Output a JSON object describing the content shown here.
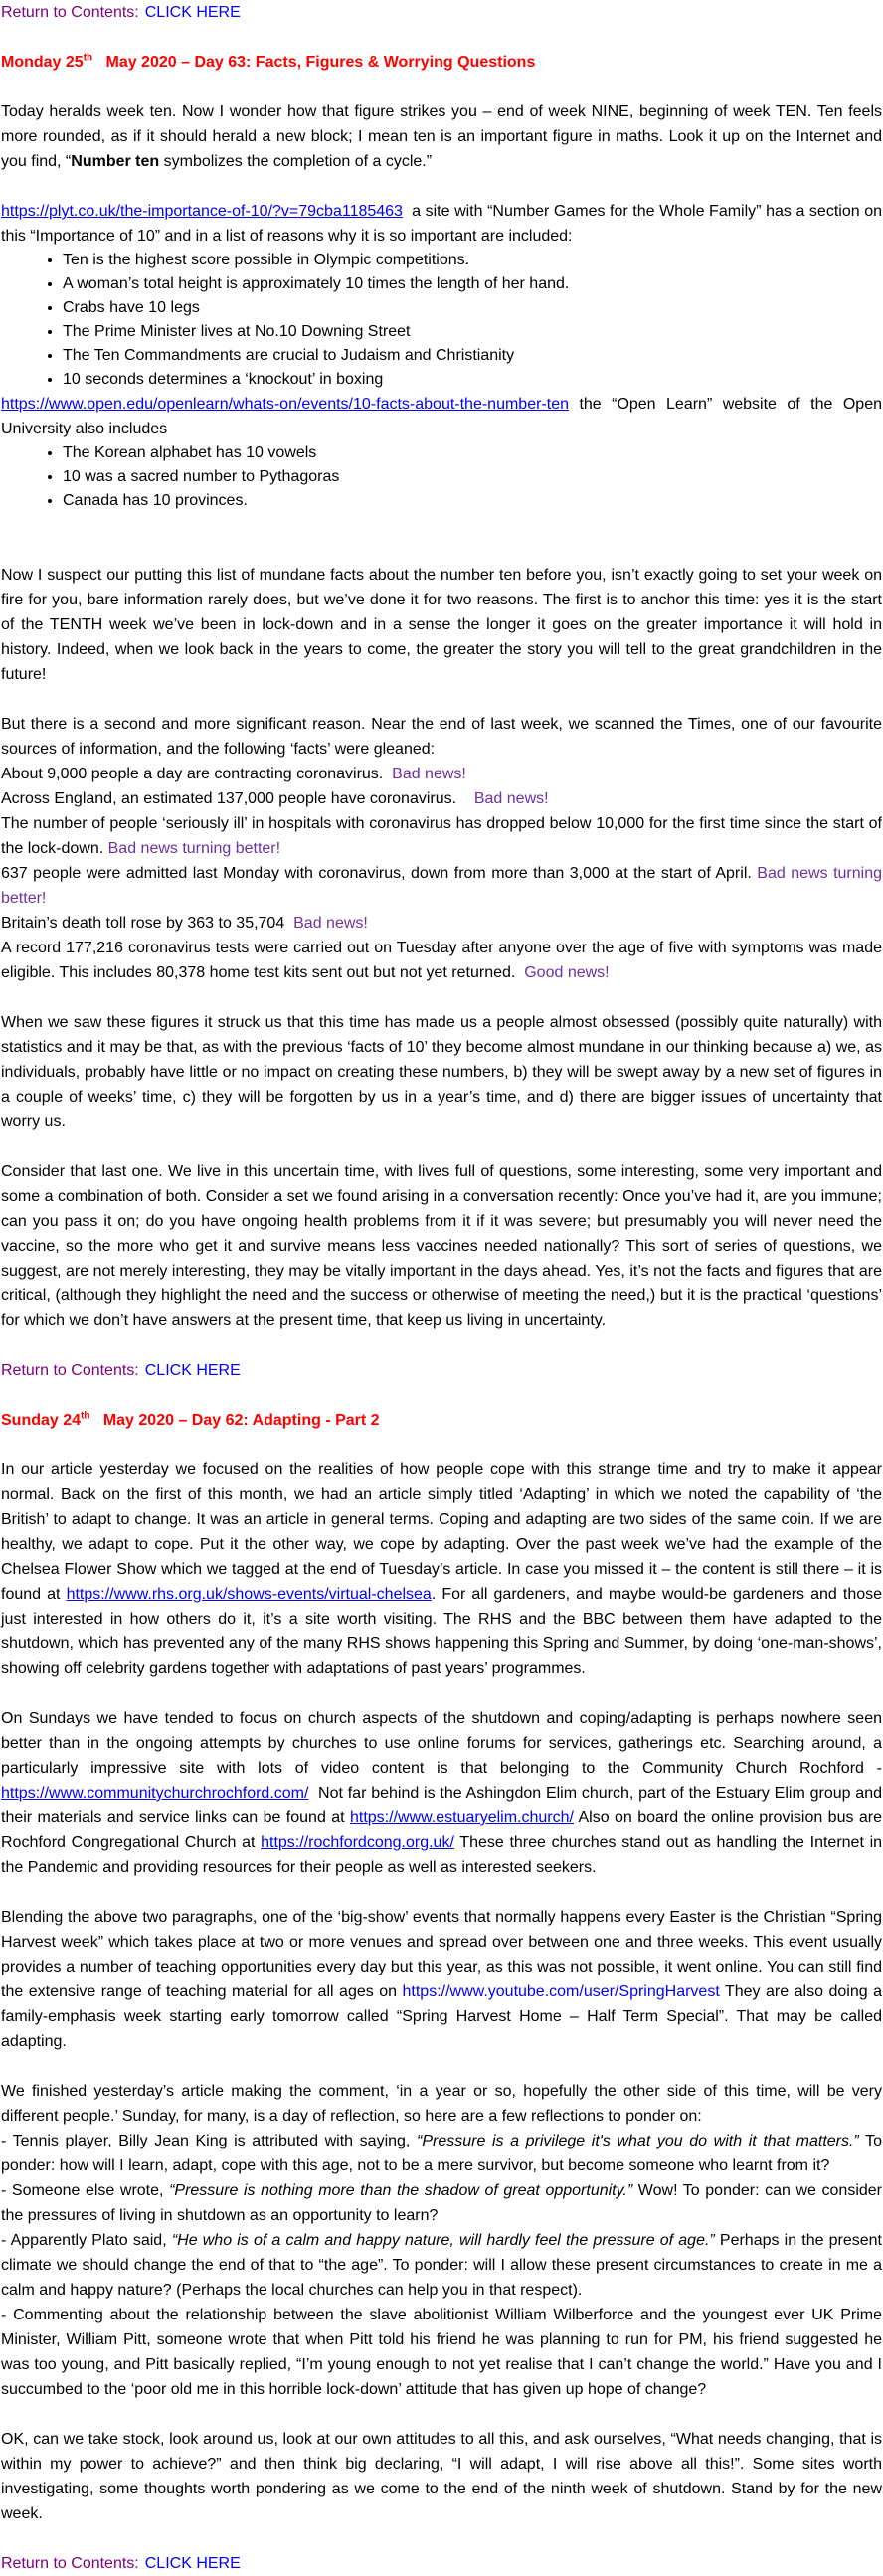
{
  "blocks": [
    [
      "Return to Contents:",
      "CLICK HERE"
    ],
    [
      "Monday 25",
      "th",
      "May 2020 – Day 63: Facts, Figures & Worrying Questions"
    ],
    [
      "Today heralds week ten. Now I wonder how that figure strikes you – end of week NINE, beginning of week TEN. Ten feels more rounded, as if it should herald a new block; I mean ten is an important figure in maths. Look it up on the Internet and you find, “",
      "Number ten",
      "symbolizes the completion of a cycle.”"
    ],
    [
      "https://plyt.co.uk/the-importance-of-10/?v=79cba1185463",
      "a site with “Number Games for the Whole Family” has a section on this “Importance of 10” and in a list of reasons why it is so important are included:"
    ],
    [
      "Ten is the highest score possible in Olympic competitions.",
      "A woman’s total height is approximately 10 times the length of her hand.",
      "Crabs have 10 legs",
      "The Prime Minister lives at No.10 Downing Street",
      "The Ten Commandments are crucial to Judaism and Christianity",
      "10 seconds determines a ‘knockout’ in boxing"
    ],
    [
      "https://www.open.edu/openlearn/whats-on/events/10-facts-about-the-number-ten",
      "the “Open Learn” website of the Open University also includes"
    ],
    [
      "The Korean alphabet has 10 vowels",
      "10 was a sacred number to Pythagoras",
      "Canada has 10 provinces."
    ],
    [
      "Now I suspect our putting this list of mundane facts about the number ten before you, isn’t exactly going to set your week on fire for you, bare information rarely does, but we’ve done it for two reasons. The first is to anchor this time: yes it is the start of the TENTH week we’ve been in lock-down and in a sense the longer it goes on the greater importance it will hold in history. Indeed, when we look back in the years to come, the greater the story you will tell to the great grandchildren in the future!"
    ],
    [
      "But there is a second and more significant reason. Near the end of last week, we scanned the Times, one of our favourite sources of information, and the following ‘facts’ were gleaned:"
    ],
    [
      "",
      "About 9,000 people a day are contracting coronavirus.",
      "Bad news!"
    ],
    [
      "",
      "Across England, an estimated 137,000 people have coronavirus.",
      "Bad news!"
    ],
    [
      "",
      "The number of people ‘seriously ill’ in hospitals with coronavirus has dropped below 10,000 for the first time since the start of the lock-down.",
      "Bad news turning better!"
    ],
    [
      "",
      "637 people were admitted last Monday with coronavirus, down from more than 3,000 at the start of April.",
      "Bad news turning better!"
    ],
    [
      "",
      "Britain’s death toll rose by 363 to 35,704",
      "Bad news!"
    ],
    [
      "",
      "A record 177,216 coronavirus tests were carried out on Tuesday after anyone over the age of five with symptoms was made eligible. This includes 80,378 home test kits sent out but not yet returned.",
      "Good news!"
    ],
    [
      "When we saw these figures it struck us that this time has made us a people almost obsessed (possibly quite naturally) with statistics and it may be that, as with the previous ‘facts of 10’ they become almost mundane in our thinking because a) we, as individuals, probably have little or no impact on creating these numbers, b) they will be swept away by a new set of figures in a couple of weeks’ time, c) they will be forgotten by us in a year’s time, and d) there are bigger issues of uncertainty that worry us."
    ],
    [
      "Consider that last one. We live in this uncertain time, with lives full of questions, some interesting, some very important and some a combination of both. Consider a set we found arising in a conversation recently: Once you’ve had it, are you immune; can you pass it on; do you have ongoing health problems from it if it was severe; but presumably you will never need the vaccine, so the more who get it and survive means less vaccines needed nationally? This sort of series of questions, we suggest, are not merely interesting, they may be vitally important in the days ahead. Yes, it’s not the facts and figures that are critical, (although they highlight the need and the success or otherwise of meeting the need,) but it is the practical ‘questions’ for which we don’t have answers at the present time, that keep us living in uncertainty."
    ],
    [
      "Return to Contents:",
      "CLICK HERE"
    ],
    [
      "Sunday 24",
      "th",
      "May 2020 – Day 62: Adapting - Part 2"
    ],
    [
      "In our article yesterday we focused on the realities of how people cope with this strange time and try to make it appear normal. Back on the first of this month, we had an article simply titled ‘Adapting’ in which we noted the capability of ‘the British’ to adapt to change. It was an article in general terms. Coping and adapting are two sides of the same coin. If we are healthy, we adapt to cope. Put it the other way, we cope by adapting. Over the past week we’ve had the example of the Chelsea Flower Show which we tagged at the end of Tuesday’s article. In case you missed it – the content is still there – it is found at",
      "https://www.rhs.org.uk/shows-events/virtual-chelsea",
      ". For all gardeners, and maybe would-be gardeners and those just interested in how others do it, it’s a site worth visiting. The RHS and the BBC between them have adapted to the shutdown, which has prevented any of the many RHS shows happening this Spring and Summer, by doing ‘one-man-shows’, showing off celebrity gardens together with adaptations of past years’ programmes."
    ],
    [
      "On Sundays we have tended to focus on church aspects of the shutdown and coping/adapting is perhaps nowhere seen better than in the ongoing attempts by churches to use online forums for services, gatherings etc. Searching around, a particularly impressive site with lots of video content is that belonging to the Community Church Rochford -",
      "https://www.communitychurchrochford.com/",
      "Not far behind is the Ashingdon Elim church, part of the Estuary Elim group and their materials and service links can be found at",
      "https://www.estuaryelim.church/",
      "Also on board the online provision bus are Rochford Congregational Church at",
      "https://rochfordcong.org.uk/",
      "These three churches stand out as handling the Internet in the Pandemic and providing resources for their people as well as interested seekers."
    ],
    [
      "Blending the above two paragraphs, one of the ‘big-show’ events that normally happens every Easter is the Christian “Spring Harvest week” which takes place at two or more venues and spread over between one and three weeks. This event usually provides a number of teaching opportunities every day but this year, as this was not possible, it went online. You can still find the extensive range of teaching material for all ages on",
      "https://www.youtube.com/user/SpringHarvest",
      "They are also doing a family-emphasis week starting early tomorrow called “Spring Harvest Home – Half Term Special”.  That may be called adapting."
    ],
    [
      "We finished yesterday’s article making the comment, ‘in a year or so, hopefully the other side of this time, will be very different people.’ Sunday, for many, is a day of reflection, so here are a few reflections to ponder on:"
    ],
    [
      "- Tennis player, Billy Jean King is attributed with saying,",
      "“Pressure is a privilege it's what you do with it that matters.”",
      "To ponder: how will I learn, adapt, cope with this age, not to be a mere survivor, but become someone who learnt from it?"
    ],
    [
      "- Someone else wrote,",
      "“Pressure is nothing more than the shadow of great opportunity.”",
      "Wow! To ponder: can we consider the pressures of living in shutdown as an opportunity to learn?"
    ],
    [
      "- Apparently Plato said,",
      "“He who is of a calm and happy nature, will hardly feel the pressure of age.”",
      "Perhaps in the present climate we should change the end of that to “the age”.  To ponder: will I allow these present circumstances to create in me a calm and happy nature? (Perhaps the local churches can help you in that respect)."
    ],
    [
      "- Commenting about the relationship between the slave abolitionist William Wilberforce and the youngest ever UK Prime Minister, William Pitt, someone wrote that when Pitt told his friend he was planning to run for PM, his friend suggested he was too young, and Pitt basically replied, “I’m young enough to not yet realise that I can’t change the world.” Have you and I succumbed to the ‘poor old me in this horrible lock-down’ attitude that has given up hope of change?"
    ],
    [
      "OK, can we take stock, look around us, look at our own attitudes to all this, and ask ourselves, “What needs changing, that is within my power to achieve?” and then think big declaring, “I will adapt, I will rise above all this!”.  Some sites worth investigating, some thoughts worth pondering as we come to the end of the ninth week of shutdown.  Stand by for the new week."
    ],
    [
      "Return to Contents:",
      "CLICK HERE"
    ]
  ]
}
